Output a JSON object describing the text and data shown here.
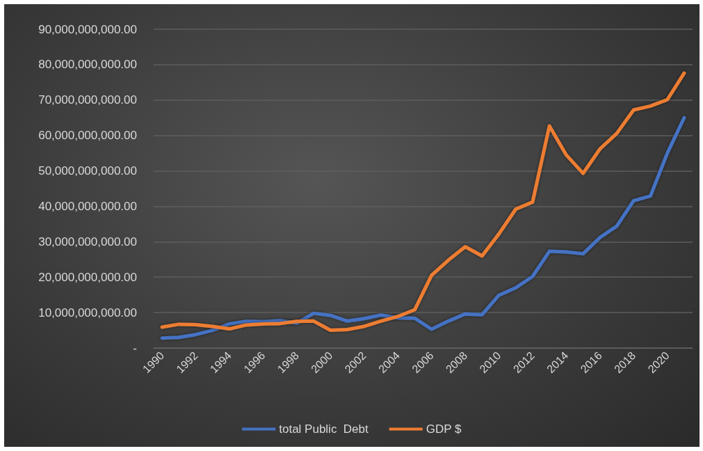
{
  "chart_data": {
    "type": "line",
    "categories": [
      "1990",
      null,
      "1992",
      null,
      "1994",
      null,
      "1996",
      null,
      "1998",
      null,
      "2000",
      null,
      "2002",
      null,
      "2004",
      null,
      "2006",
      null,
      "2008",
      null,
      "2010",
      null,
      "2012",
      null,
      "2014",
      null,
      "2016",
      null,
      "2018",
      null,
      "2020",
      null
    ],
    "series": [
      {
        "name": "total Public  Debt",
        "color": "#4472c4",
        "values": [
          2800000000.0,
          3000000000.0,
          3800000000.0,
          5000000000.0,
          6800000000.0,
          7500000000.0,
          7400000000.0,
          7700000000.0,
          7000000000.0,
          9800000000.0,
          9200000000.0,
          7600000000.0,
          8300000000.0,
          9300000000.0,
          8500000000.0,
          8400000000.0,
          5300000000.0,
          7600000000.0,
          9600000000.0,
          9400000000.0,
          14900000000.0,
          17000000000.0,
          20200000000.0,
          27300000000.0,
          27100000000.0,
          26600000000.0,
          31200000000.0,
          34400000000.0,
          41600000000.0,
          42900000000.0,
          55000000000.0,
          65000000000.0
        ]
      },
      {
        "name": "GDP $",
        "color": "#ed7d31",
        "values": [
          5900000000.0,
          6700000000.0,
          6600000000.0,
          6100000000.0,
          5400000000.0,
          6500000000.0,
          6800000000.0,
          6900000000.0,
          7500000000.0,
          7600000000.0,
          5000000000.0,
          5200000000.0,
          6100000000.0,
          7600000000.0,
          8900000000.0,
          10800000000.0,
          20500000000.0,
          24800000000.0,
          28600000000.0,
          26000000000.0,
          32200000000.0,
          39200000000.0,
          41200000000.0,
          62700000000.0,
          54500000000.0,
          49300000000.0,
          56200000000.0,
          60600000000.0,
          67200000000.0,
          68300000000.0,
          70100000000.0,
          77600000000.0
        ]
      }
    ],
    "ylim": [
      0,
      90000000000
    ],
    "yticks": [
      {
        "value": 0,
        "label": "-"
      },
      {
        "value": 10000000000,
        "label": "10,000,000,000.00"
      },
      {
        "value": 20000000000,
        "label": "20,000,000,000.00"
      },
      {
        "value": 30000000000,
        "label": "30,000,000,000.00"
      },
      {
        "value": 40000000000,
        "label": "40,000,000,000.00"
      },
      {
        "value": 50000000000,
        "label": "50,000,000,000.00"
      },
      {
        "value": 60000000000,
        "label": "60,000,000,000.00"
      },
      {
        "value": 70000000000,
        "label": "70,000,000,000.00"
      },
      {
        "value": 80000000000,
        "label": "80,000,000,000.00"
      },
      {
        "value": 90000000000,
        "label": "90,000,000,000.00"
      }
    ],
    "grid": "y",
    "legend": "bottom",
    "marker": "none",
    "line_style": "solid"
  }
}
